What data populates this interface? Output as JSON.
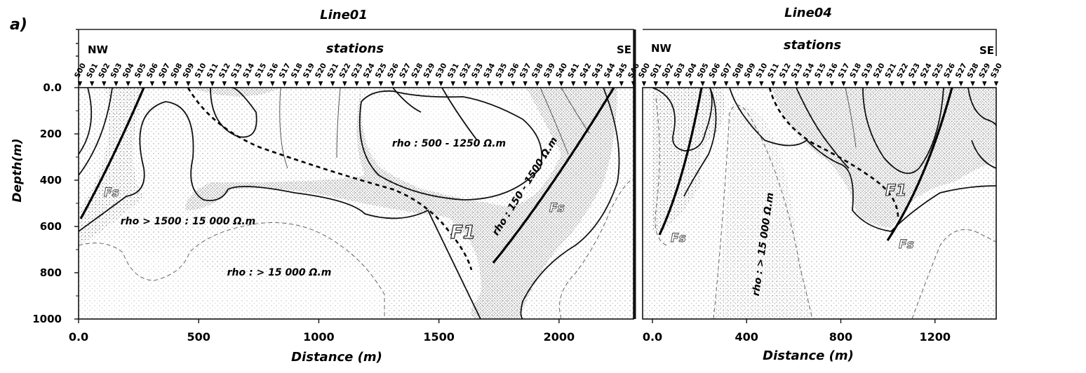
{
  "panel_label": "a)",
  "y_axis_label": "Depth(m)",
  "x_axis_label": "Distance (m)",
  "line01": {
    "title": "Line01",
    "header": "stations",
    "nw": "NW",
    "se": "SE",
    "stations": [
      "S00",
      "S01",
      "S02",
      "S03",
      "S04",
      "S05",
      "S06",
      "S07",
      "S08",
      "S09",
      "S10",
      "S11",
      "S12",
      "S13",
      "S14",
      "S15",
      "S16",
      "S17",
      "S18",
      "S19",
      "S20",
      "S21",
      "S22",
      "S23",
      "S24",
      "S25",
      "S26",
      "S27",
      "S28",
      "S29",
      "S30",
      "S31",
      "S32",
      "S33",
      "S34",
      "S35",
      "S36",
      "S37",
      "S38",
      "S39",
      "S40",
      "S41",
      "S42",
      "S43",
      "S44",
      "S45",
      "S46"
    ],
    "x_ticks": [
      "0.0",
      "500",
      "1000",
      "1500",
      "2000"
    ],
    "y_ticks": [
      "0.0",
      "200",
      "400",
      "600",
      "800",
      "1000"
    ],
    "annotations": {
      "rho_top": "rho : 500 - 1250 Ω.m",
      "rho_mid": "rho > 1500 : 15 000 Ω.m",
      "rho_deep": "rho : > 15 000 Ω.m",
      "rho_diag": "rho : 150 - 1500 Ω.m",
      "fs_left": "Fs",
      "fs_right": "Fs",
      "f1": "F1"
    }
  },
  "line04": {
    "title": "Line04",
    "header": "stations",
    "nw": "NW",
    "se": "SE",
    "stations": [
      "S00",
      "S01",
      "S02",
      "S03",
      "S04",
      "S05",
      "S06",
      "S07",
      "S08",
      "S09",
      "S10",
      "S11",
      "S12",
      "S13",
      "S14",
      "S15",
      "S16",
      "S17",
      "S18",
      "S19",
      "S20",
      "S21",
      "S22",
      "S23",
      "S24",
      "S25",
      "S26",
      "S27",
      "S28",
      "S29",
      "S30"
    ],
    "x_ticks": [
      "0.0",
      "400",
      "800",
      "1200"
    ],
    "annotations": {
      "rho_vert": "rho : > 15 000 Ω.m",
      "fs_left": "Fs",
      "fs_right": "Fs",
      "f1": "F1"
    }
  }
}
